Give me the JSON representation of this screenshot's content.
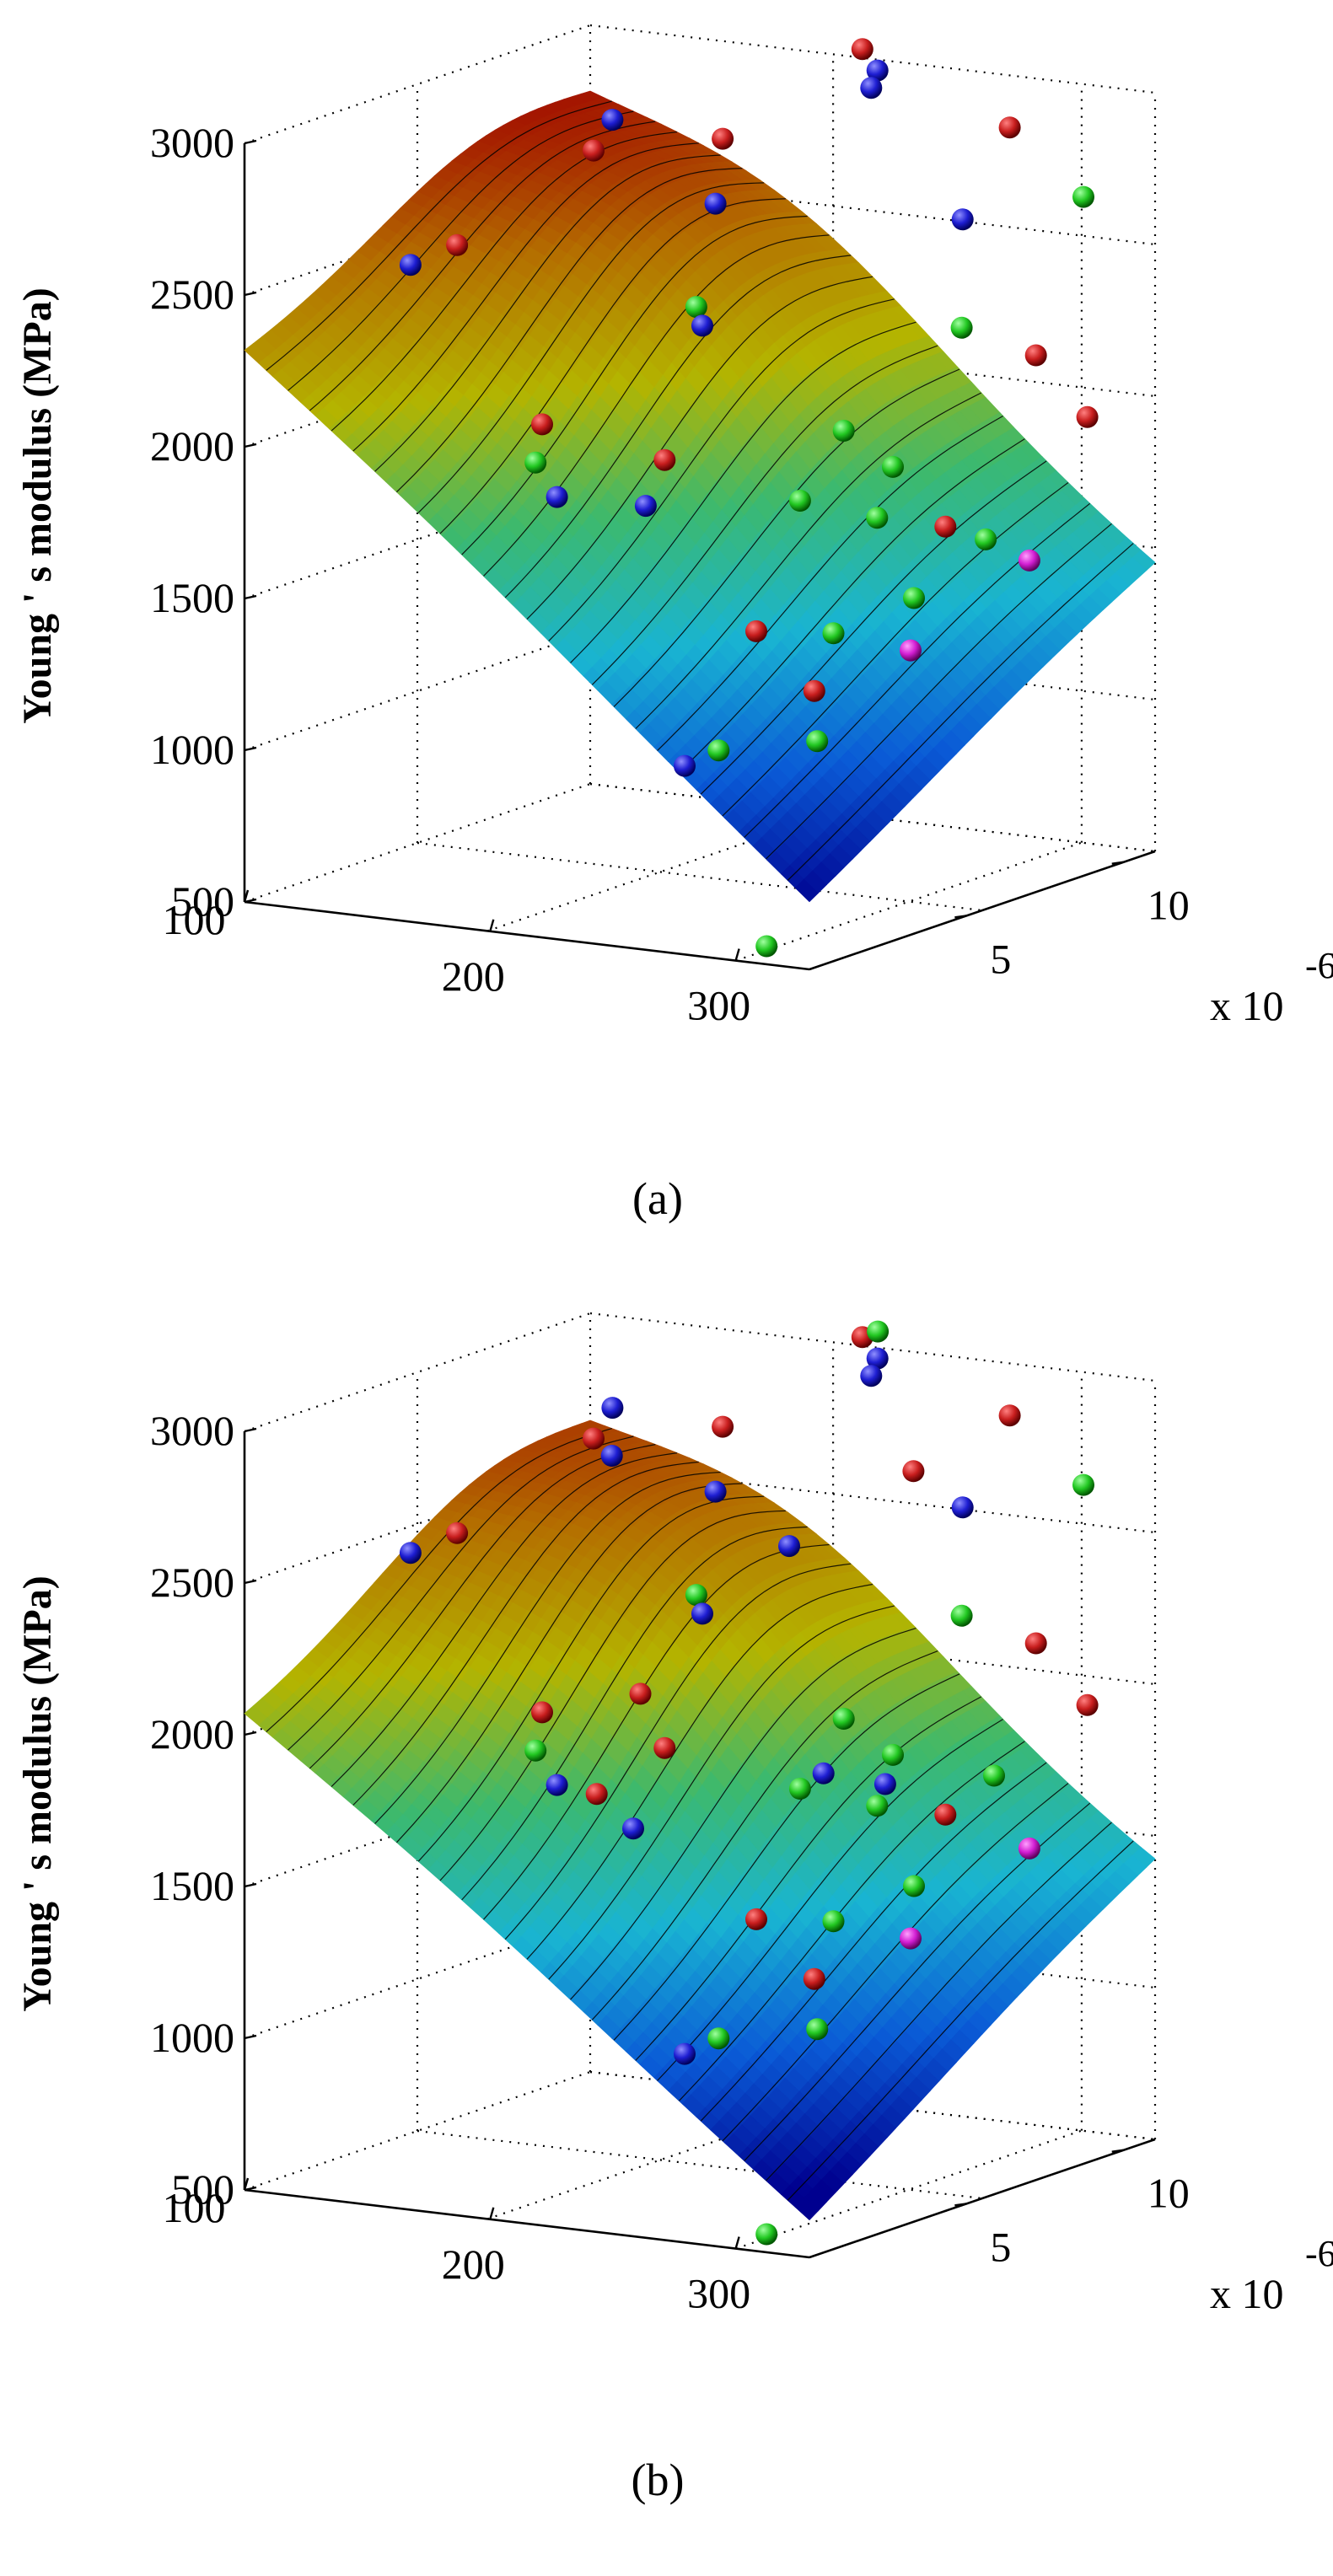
{
  "chart_data": [
    {
      "type": "surface3d",
      "caption": "(a)",
      "zlabel": "Young ' s modulus (MPa)",
      "ylabel_multiplier": "x 10",
      "ylabel_exponent": "-6",
      "x_ticks": [
        100,
        200,
        300
      ],
      "y_ticks": [
        5,
        10
      ],
      "z_ticks": [
        500,
        1000,
        1500,
        2000,
        2500,
        3000
      ],
      "xlim": [
        100,
        330
      ],
      "ylim": [
        0,
        11
      ],
      "zlim": [
        500,
        3000
      ],
      "grid": true,
      "surface": {
        "colormap": [
          "#00008f",
          "#0a5ad6",
          "#19b4d2",
          "#3cb96e",
          "#b4b400",
          "#b46e00",
          "#a00000"
        ],
        "corners": {
          "x100_y0": 2300,
          "x330_y0": 720,
          "x100_y11": 2650,
          "x330_y11": 1430
        },
        "peak": 2850,
        "contours": 26
      },
      "points": [
        {
          "x": 110,
          "y": 4.5,
          "z": 2450,
          "c": "blue"
        },
        {
          "x": 120,
          "y": 5.2,
          "z": 2500,
          "c": "red"
        },
        {
          "x": 150,
          "y": 7.8,
          "z": 2850,
          "c": "blue"
        },
        {
          "x": 150,
          "y": 7.2,
          "z": 2770,
          "c": "red"
        },
        {
          "x": 170,
          "y": 4.0,
          "z": 2000,
          "c": "red"
        },
        {
          "x": 175,
          "y": 3.4,
          "z": 1900,
          "c": "green"
        },
        {
          "x": 185,
          "y": 3.3,
          "z": 1800,
          "c": "blue"
        },
        {
          "x": 200,
          "y": 7.4,
          "z": 2850,
          "c": "red"
        },
        {
          "x": 215,
          "y": 6.0,
          "z": 2700,
          "c": "blue"
        },
        {
          "x": 220,
          "y": 5.0,
          "z": 2400,
          "c": "green"
        },
        {
          "x": 225,
          "y": 4.8,
          "z": 2350,
          "c": "blue"
        },
        {
          "x": 225,
          "y": 3.0,
          "z": 1820,
          "c": "blue"
        },
        {
          "x": 225,
          "y": 3.6,
          "z": 1950,
          "c": "red"
        },
        {
          "x": 230,
          "y": 9.5,
          "z": 3100,
          "c": "red"
        },
        {
          "x": 240,
          "y": 9.2,
          "z": 3050,
          "c": "blue"
        },
        {
          "x": 240,
          "y": 9.0,
          "z": 3000,
          "c": "blue"
        },
        {
          "x": 260,
          "y": 1.5,
          "z": 1050,
          "c": "blue"
        },
        {
          "x": 270,
          "y": 1.8,
          "z": 1100,
          "c": "green"
        },
        {
          "x": 270,
          "y": 3.0,
          "z": 1450,
          "c": "red"
        },
        {
          "x": 275,
          "y": 4.0,
          "z": 1850,
          "c": "green"
        },
        {
          "x": 280,
          "y": 5.0,
          "z": 2050,
          "c": "green"
        },
        {
          "x": 290,
          "y": 9.5,
          "z": 2900,
          "c": "red"
        },
        {
          "x": 290,
          "y": 8.0,
          "z": 2650,
          "c": "blue"
        },
        {
          "x": 295,
          "y": 3.5,
          "z": 1450,
          "c": "green"
        },
        {
          "x": 300,
          "y": 4.5,
          "z": 1800,
          "c": "green"
        },
        {
          "x": 300,
          "y": 5.0,
          "z": 1950,
          "c": "green"
        },
        {
          "x": 300,
          "y": 2.5,
          "z": 1300,
          "c": "red"
        },
        {
          "x": 305,
          "y": 6.8,
          "z": 2350,
          "c": "green"
        },
        {
          "x": 305,
          "y": 2.2,
          "z": 1150,
          "c": "green"
        },
        {
          "x": 310,
          "y": 0.2,
          "z": 550,
          "c": "green"
        },
        {
          "x": 315,
          "y": 5.5,
          "z": 1750,
          "c": "red"
        },
        {
          "x": 315,
          "y": 4.5,
          "z": 1550,
          "c": "green"
        },
        {
          "x": 320,
          "y": 4.0,
          "z": 1400,
          "c": "magenta"
        },
        {
          "x": 320,
          "y": 9.5,
          "z": 2700,
          "c": "green"
        },
        {
          "x": 325,
          "y": 7.6,
          "z": 2250,
          "c": "red"
        },
        {
          "x": 325,
          "y": 6.0,
          "z": 1700,
          "c": "green"
        },
        {
          "x": 328,
          "y": 9.0,
          "z": 2000,
          "c": "red"
        },
        {
          "x": 330,
          "y": 7.0,
          "z": 1600,
          "c": "magenta"
        }
      ]
    },
    {
      "type": "surface3d",
      "caption": "(b)",
      "zlabel": "Young ' s modulus (MPa)",
      "ylabel_multiplier": "x 10",
      "ylabel_exponent": "-6",
      "x_ticks": [
        100,
        200,
        300
      ],
      "y_ticks": [
        5,
        10
      ],
      "z_ticks": [
        500,
        1000,
        1500,
        2000,
        2500,
        3000
      ],
      "xlim": [
        100,
        330
      ],
      "ylim": [
        0,
        11
      ],
      "zlim": [
        500,
        3000
      ],
      "grid": true,
      "surface": {
        "colormap": [
          "#00008f",
          "#0a5ad6",
          "#19b4d2",
          "#3cb96e",
          "#b4b400",
          "#b46e00",
          "#a00000"
        ],
        "corners": {
          "x100_y0": 2050,
          "x330_y0": 620,
          "x100_y11": 2500,
          "x330_y11": 1400
        },
        "peak": 2830,
        "contours": 26
      },
      "points": [
        {
          "x": 110,
          "y": 4.5,
          "z": 2450,
          "c": "blue"
        },
        {
          "x": 120,
          "y": 5.2,
          "z": 2500,
          "c": "red"
        },
        {
          "x": 150,
          "y": 7.8,
          "z": 2850,
          "c": "blue"
        },
        {
          "x": 150,
          "y": 7.2,
          "z": 2770,
          "c": "red"
        },
        {
          "x": 160,
          "y": 7.0,
          "z": 2730,
          "c": "blue"
        },
        {
          "x": 170,
          "y": 4.0,
          "z": 2000,
          "c": "red"
        },
        {
          "x": 175,
          "y": 3.4,
          "z": 1900,
          "c": "green"
        },
        {
          "x": 185,
          "y": 3.3,
          "z": 1800,
          "c": "blue"
        },
        {
          "x": 200,
          "y": 7.4,
          "z": 2850,
          "c": "red"
        },
        {
          "x": 205,
          "y": 3.0,
          "z": 1800,
          "c": "red"
        },
        {
          "x": 210,
          "y": 4.0,
          "z": 2100,
          "c": "red"
        },
        {
          "x": 215,
          "y": 6.0,
          "z": 2700,
          "c": "blue"
        },
        {
          "x": 220,
          "y": 5.0,
          "z": 2400,
          "c": "green"
        },
        {
          "x": 225,
          "y": 4.8,
          "z": 2350,
          "c": "blue"
        },
        {
          "x": 225,
          "y": 2.6,
          "z": 1720,
          "c": "blue"
        },
        {
          "x": 225,
          "y": 3.6,
          "z": 1950,
          "c": "red"
        },
        {
          "x": 230,
          "y": 9.5,
          "z": 3100,
          "c": "red"
        },
        {
          "x": 235,
          "y": 9.6,
          "z": 3120,
          "c": "green"
        },
        {
          "x": 240,
          "y": 9.2,
          "z": 3050,
          "c": "blue"
        },
        {
          "x": 240,
          "y": 9.0,
          "z": 3000,
          "c": "blue"
        },
        {
          "x": 245,
          "y": 6.0,
          "z": 2550,
          "c": "blue"
        },
        {
          "x": 260,
          "y": 1.5,
          "z": 1050,
          "c": "blue"
        },
        {
          "x": 270,
          "y": 1.8,
          "z": 1100,
          "c": "green"
        },
        {
          "x": 270,
          "y": 3.0,
          "z": 1450,
          "c": "red"
        },
        {
          "x": 270,
          "y": 8.0,
          "z": 2750,
          "c": "red"
        },
        {
          "x": 275,
          "y": 4.0,
          "z": 1850,
          "c": "green"
        },
        {
          "x": 280,
          "y": 5.0,
          "z": 2050,
          "c": "green"
        },
        {
          "x": 282,
          "y": 4.2,
          "z": 1900,
          "c": "blue"
        },
        {
          "x": 290,
          "y": 9.5,
          "z": 2900,
          "c": "red"
        },
        {
          "x": 290,
          "y": 8.0,
          "z": 2650,
          "c": "blue"
        },
        {
          "x": 295,
          "y": 3.5,
          "z": 1450,
          "c": "green"
        },
        {
          "x": 300,
          "y": 4.5,
          "z": 1800,
          "c": "green"
        },
        {
          "x": 300,
          "y": 5.0,
          "z": 1950,
          "c": "green"
        },
        {
          "x": 302,
          "y": 4.6,
          "z": 1870,
          "c": "blue"
        },
        {
          "x": 300,
          "y": 2.5,
          "z": 1300,
          "c": "red"
        },
        {
          "x": 305,
          "y": 6.8,
          "z": 2350,
          "c": "green"
        },
        {
          "x": 305,
          "y": 2.2,
          "z": 1150,
          "c": "green"
        },
        {
          "x": 310,
          "y": 0.2,
          "z": 550,
          "c": "green"
        },
        {
          "x": 315,
          "y": 5.5,
          "z": 1750,
          "c": "red"
        },
        {
          "x": 315,
          "y": 4.5,
          "z": 1550,
          "c": "green"
        },
        {
          "x": 320,
          "y": 4.0,
          "z": 1400,
          "c": "magenta"
        },
        {
          "x": 320,
          "y": 9.5,
          "z": 2700,
          "c": "green"
        },
        {
          "x": 322,
          "y": 6.5,
          "z": 1850,
          "c": "green"
        },
        {
          "x": 325,
          "y": 7.6,
          "z": 2250,
          "c": "red"
        },
        {
          "x": 328,
          "y": 9.0,
          "z": 2000,
          "c": "red"
        },
        {
          "x": 330,
          "y": 7.0,
          "z": 1600,
          "c": "magenta"
        }
      ]
    }
  ]
}
